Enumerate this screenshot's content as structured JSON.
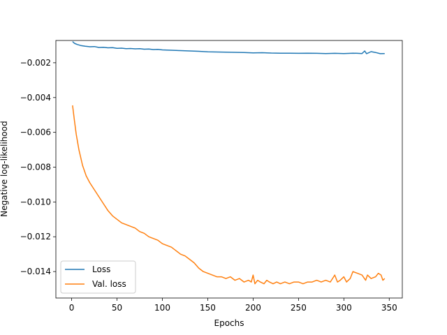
{
  "chart_data": {
    "type": "line",
    "title": "",
    "xlabel": "Epochs",
    "ylabel": "Negative log-likelihood",
    "xlim": [
      -17.4,
      364.4
    ],
    "ylim": [
      -0.01552,
      -0.00072
    ],
    "xticks": [
      0,
      50,
      100,
      150,
      200,
      250,
      300,
      350
    ],
    "xtick_labels": [
      "0",
      "50",
      "100",
      "150",
      "200",
      "250",
      "300",
      "350"
    ],
    "yticks": [
      -0.014,
      -0.012,
      -0.01,
      -0.008,
      -0.006,
      -0.004,
      -0.002
    ],
    "ytick_labels": [
      "−0.014",
      "−0.012",
      "−0.010",
      "−0.008",
      "−0.006",
      "−0.004",
      "−0.002"
    ],
    "grid": false,
    "legend_position": "lower-left",
    "series": [
      {
        "name": "Loss",
        "color": "#1f77b4",
        "points": [
          [
            1,
            -0.00078
          ],
          [
            3,
            -0.00088
          ],
          [
            6,
            -0.00095
          ],
          [
            10,
            -0.00101
          ],
          [
            15,
            -0.00105
          ],
          [
            20,
            -0.00108
          ],
          [
            25,
            -0.00107
          ],
          [
            30,
            -0.00112
          ],
          [
            35,
            -0.00111
          ],
          [
            40,
            -0.00114
          ],
          [
            45,
            -0.00113
          ],
          [
            50,
            -0.00117
          ],
          [
            55,
            -0.00116
          ],
          [
            60,
            -0.00119
          ],
          [
            65,
            -0.00118
          ],
          [
            70,
            -0.0012
          ],
          [
            75,
            -0.00119
          ],
          [
            80,
            -0.00122
          ],
          [
            85,
            -0.00121
          ],
          [
            90,
            -0.00124
          ],
          [
            95,
            -0.00123
          ],
          [
            100,
            -0.00126
          ],
          [
            110,
            -0.00128
          ],
          [
            120,
            -0.0013
          ],
          [
            130,
            -0.00132
          ],
          [
            140,
            -0.00134
          ],
          [
            150,
            -0.00137
          ],
          [
            160,
            -0.00138
          ],
          [
            170,
            -0.00139
          ],
          [
            180,
            -0.0014
          ],
          [
            190,
            -0.00141
          ],
          [
            200,
            -0.00143
          ],
          [
            210,
            -0.00142
          ],
          [
            220,
            -0.00144
          ],
          [
            230,
            -0.00145
          ],
          [
            240,
            -0.00145
          ],
          [
            250,
            -0.00146
          ],
          [
            260,
            -0.00145
          ],
          [
            270,
            -0.00146
          ],
          [
            280,
            -0.00147
          ],
          [
            290,
            -0.00146
          ],
          [
            300,
            -0.00147
          ],
          [
            310,
            -0.00145
          ],
          [
            315,
            -0.00146
          ],
          [
            320,
            -0.00147
          ],
          [
            323,
            -0.00132
          ],
          [
            325,
            -0.00148
          ],
          [
            330,
            -0.00136
          ],
          [
            335,
            -0.00141
          ],
          [
            340,
            -0.00148
          ],
          [
            345,
            -0.00147
          ]
        ]
      },
      {
        "name": "Val. loss",
        "color": "#ff7f0e",
        "points": [
          [
            1,
            -0.00445
          ],
          [
            3,
            -0.0053
          ],
          [
            5,
            -0.0061
          ],
          [
            8,
            -0.007
          ],
          [
            12,
            -0.0079
          ],
          [
            16,
            -0.0085
          ],
          [
            20,
            -0.0089
          ],
          [
            25,
            -0.0093
          ],
          [
            30,
            -0.0097
          ],
          [
            35,
            -0.0101
          ],
          [
            40,
            -0.0105
          ],
          [
            45,
            -0.0108
          ],
          [
            50,
            -0.011
          ],
          [
            55,
            -0.0112
          ],
          [
            60,
            -0.0113
          ],
          [
            65,
            -0.0114
          ],
          [
            70,
            -0.0115
          ],
          [
            75,
            -0.0117
          ],
          [
            80,
            -0.0118
          ],
          [
            85,
            -0.012
          ],
          [
            90,
            -0.0121
          ],
          [
            95,
            -0.0122
          ],
          [
            100,
            -0.0124
          ],
          [
            105,
            -0.0125
          ],
          [
            110,
            -0.0126
          ],
          [
            115,
            -0.0128
          ],
          [
            120,
            -0.013
          ],
          [
            125,
            -0.0131
          ],
          [
            130,
            -0.0133
          ],
          [
            135,
            -0.0135
          ],
          [
            140,
            -0.0138
          ],
          [
            145,
            -0.014
          ],
          [
            150,
            -0.0141
          ],
          [
            155,
            -0.0142
          ],
          [
            160,
            -0.0143
          ],
          [
            165,
            -0.0143
          ],
          [
            170,
            -0.0144
          ],
          [
            175,
            -0.0143
          ],
          [
            180,
            -0.0145
          ],
          [
            185,
            -0.0144
          ],
          [
            190,
            -0.0146
          ],
          [
            195,
            -0.0145
          ],
          [
            198,
            -0.0146
          ],
          [
            200,
            -0.0142
          ],
          [
            202,
            -0.0147
          ],
          [
            205,
            -0.0145
          ],
          [
            208,
            -0.0146
          ],
          [
            212,
            -0.0147
          ],
          [
            215,
            -0.0145
          ],
          [
            218,
            -0.0146
          ],
          [
            222,
            -0.0147
          ],
          [
            226,
            -0.0146
          ],
          [
            230,
            -0.0147
          ],
          [
            235,
            -0.0146
          ],
          [
            240,
            -0.0147
          ],
          [
            245,
            -0.0146
          ],
          [
            250,
            -0.0146
          ],
          [
            255,
            -0.0147
          ],
          [
            260,
            -0.0146
          ],
          [
            265,
            -0.0146
          ],
          [
            270,
            -0.0145
          ],
          [
            275,
            -0.0146
          ],
          [
            280,
            -0.0145
          ],
          [
            285,
            -0.0146
          ],
          [
            290,
            -0.0142
          ],
          [
            293,
            -0.0146
          ],
          [
            296,
            -0.0145
          ],
          [
            300,
            -0.0143
          ],
          [
            303,
            -0.0146
          ],
          [
            307,
            -0.0144
          ],
          [
            310,
            -0.014
          ],
          [
            315,
            -0.0141
          ],
          [
            320,
            -0.0142
          ],
          [
            324,
            -0.0145
          ],
          [
            326,
            -0.0142
          ],
          [
            330,
            -0.0144
          ],
          [
            335,
            -0.0143
          ],
          [
            338,
            -0.0141
          ],
          [
            341,
            -0.0142
          ],
          [
            343,
            -0.0145
          ],
          [
            345,
            -0.0144
          ]
        ]
      }
    ]
  }
}
